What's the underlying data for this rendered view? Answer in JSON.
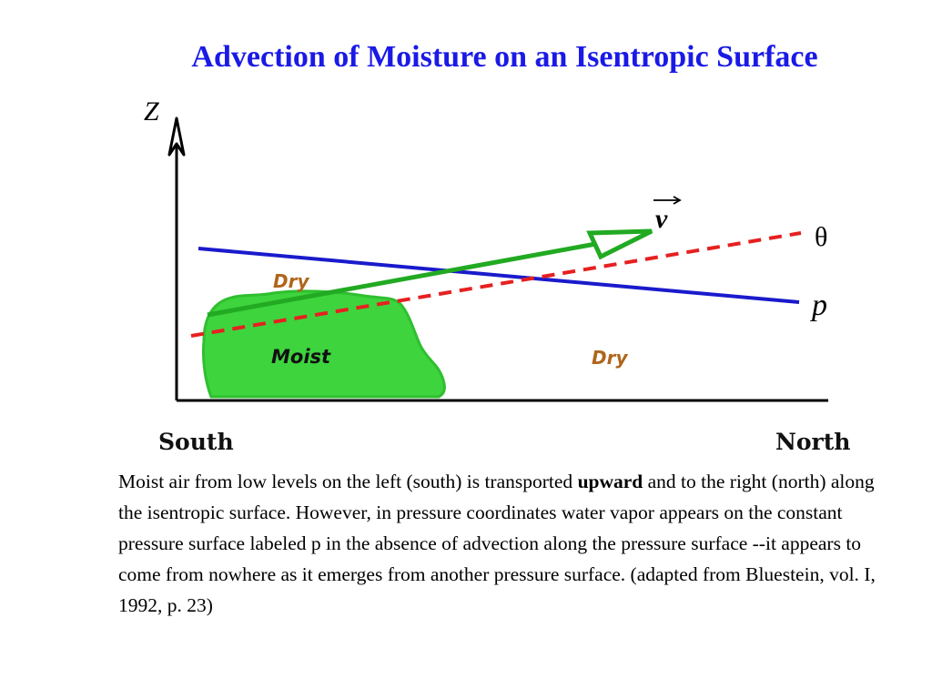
{
  "title": "Advection of Moisture on an Isentropic Surface",
  "diagram": {
    "z_axis_label": "Z",
    "vector_label": "v",
    "theta_label": "θ",
    "pressure_label": "p",
    "dry_upper_label": "Dry",
    "moist_label": "Moist",
    "dry_lower_label": "Dry",
    "south_label": "South",
    "north_label": "North",
    "colors": {
      "pressure_line": "#1a1acc",
      "theta_line": "#e62020",
      "vector": "#22aa22",
      "moist_fill": "#3ed43e",
      "dry_text": "#b0651a"
    }
  },
  "caption": {
    "part1": "Moist air from low levels on the left (south) is transported ",
    "bold": "upward",
    "part2": " and to the right (north) along the isentropic surface. However, in pressure coordinates water vapor appears on the constant pressure surface labeled p in the absence of advection along the pressure surface --it appears to come from nowhere as it emerges from another pressure surface. (adapted from Bluestein, vol. I, 1992, p. 23)"
  }
}
